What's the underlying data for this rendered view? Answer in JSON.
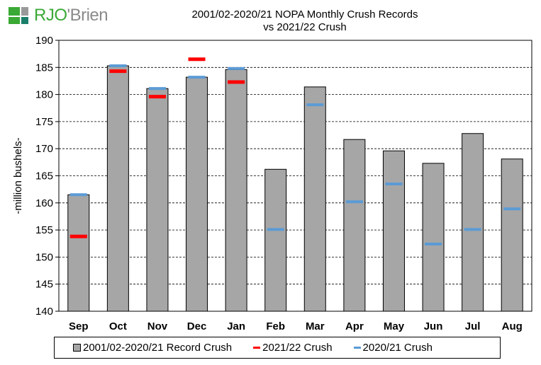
{
  "logo": {
    "text_main": "RJO",
    "text_sub": "'Brien"
  },
  "chart_data": {
    "type": "bar",
    "title": "2001/02-2020/21 NOPA Monthly Crush Records",
    "subtitle": "vs 2021/22 Crush",
    "ylabel": "-million bushels-",
    "xlabel": "",
    "ylim": [
      140,
      190
    ],
    "yticks": [
      140,
      145,
      150,
      155,
      160,
      165,
      170,
      175,
      180,
      185,
      190
    ],
    "grid": true,
    "legend_position": "bottom",
    "categories": [
      "Sep",
      "Oct",
      "Nov",
      "Dec",
      "Jan",
      "Feb",
      "Mar",
      "Apr",
      "May",
      "Jun",
      "Jul",
      "Aug"
    ],
    "series": [
      {
        "name": "2001/02-2020/21 Record Crush",
        "type": "bar",
        "color": "#a6a6a6",
        "values": [
          161.5,
          185.3,
          181.1,
          183.2,
          184.6,
          166.2,
          181.4,
          171.7,
          169.6,
          167.3,
          172.8,
          168.1
        ]
      },
      {
        "name": "2021/22 Crush",
        "type": "marker",
        "color": "#ff0000",
        "values": [
          153.8,
          184.3,
          179.6,
          186.5,
          182.3,
          null,
          null,
          null,
          null,
          null,
          null,
          null
        ]
      },
      {
        "name": "2020/21 Crush",
        "type": "marker",
        "color": "#5b9bd5",
        "values": [
          161.5,
          185.3,
          181.1,
          183.2,
          184.8,
          155.1,
          178.1,
          160.2,
          163.5,
          152.4,
          155.1,
          158.9
        ]
      }
    ]
  }
}
